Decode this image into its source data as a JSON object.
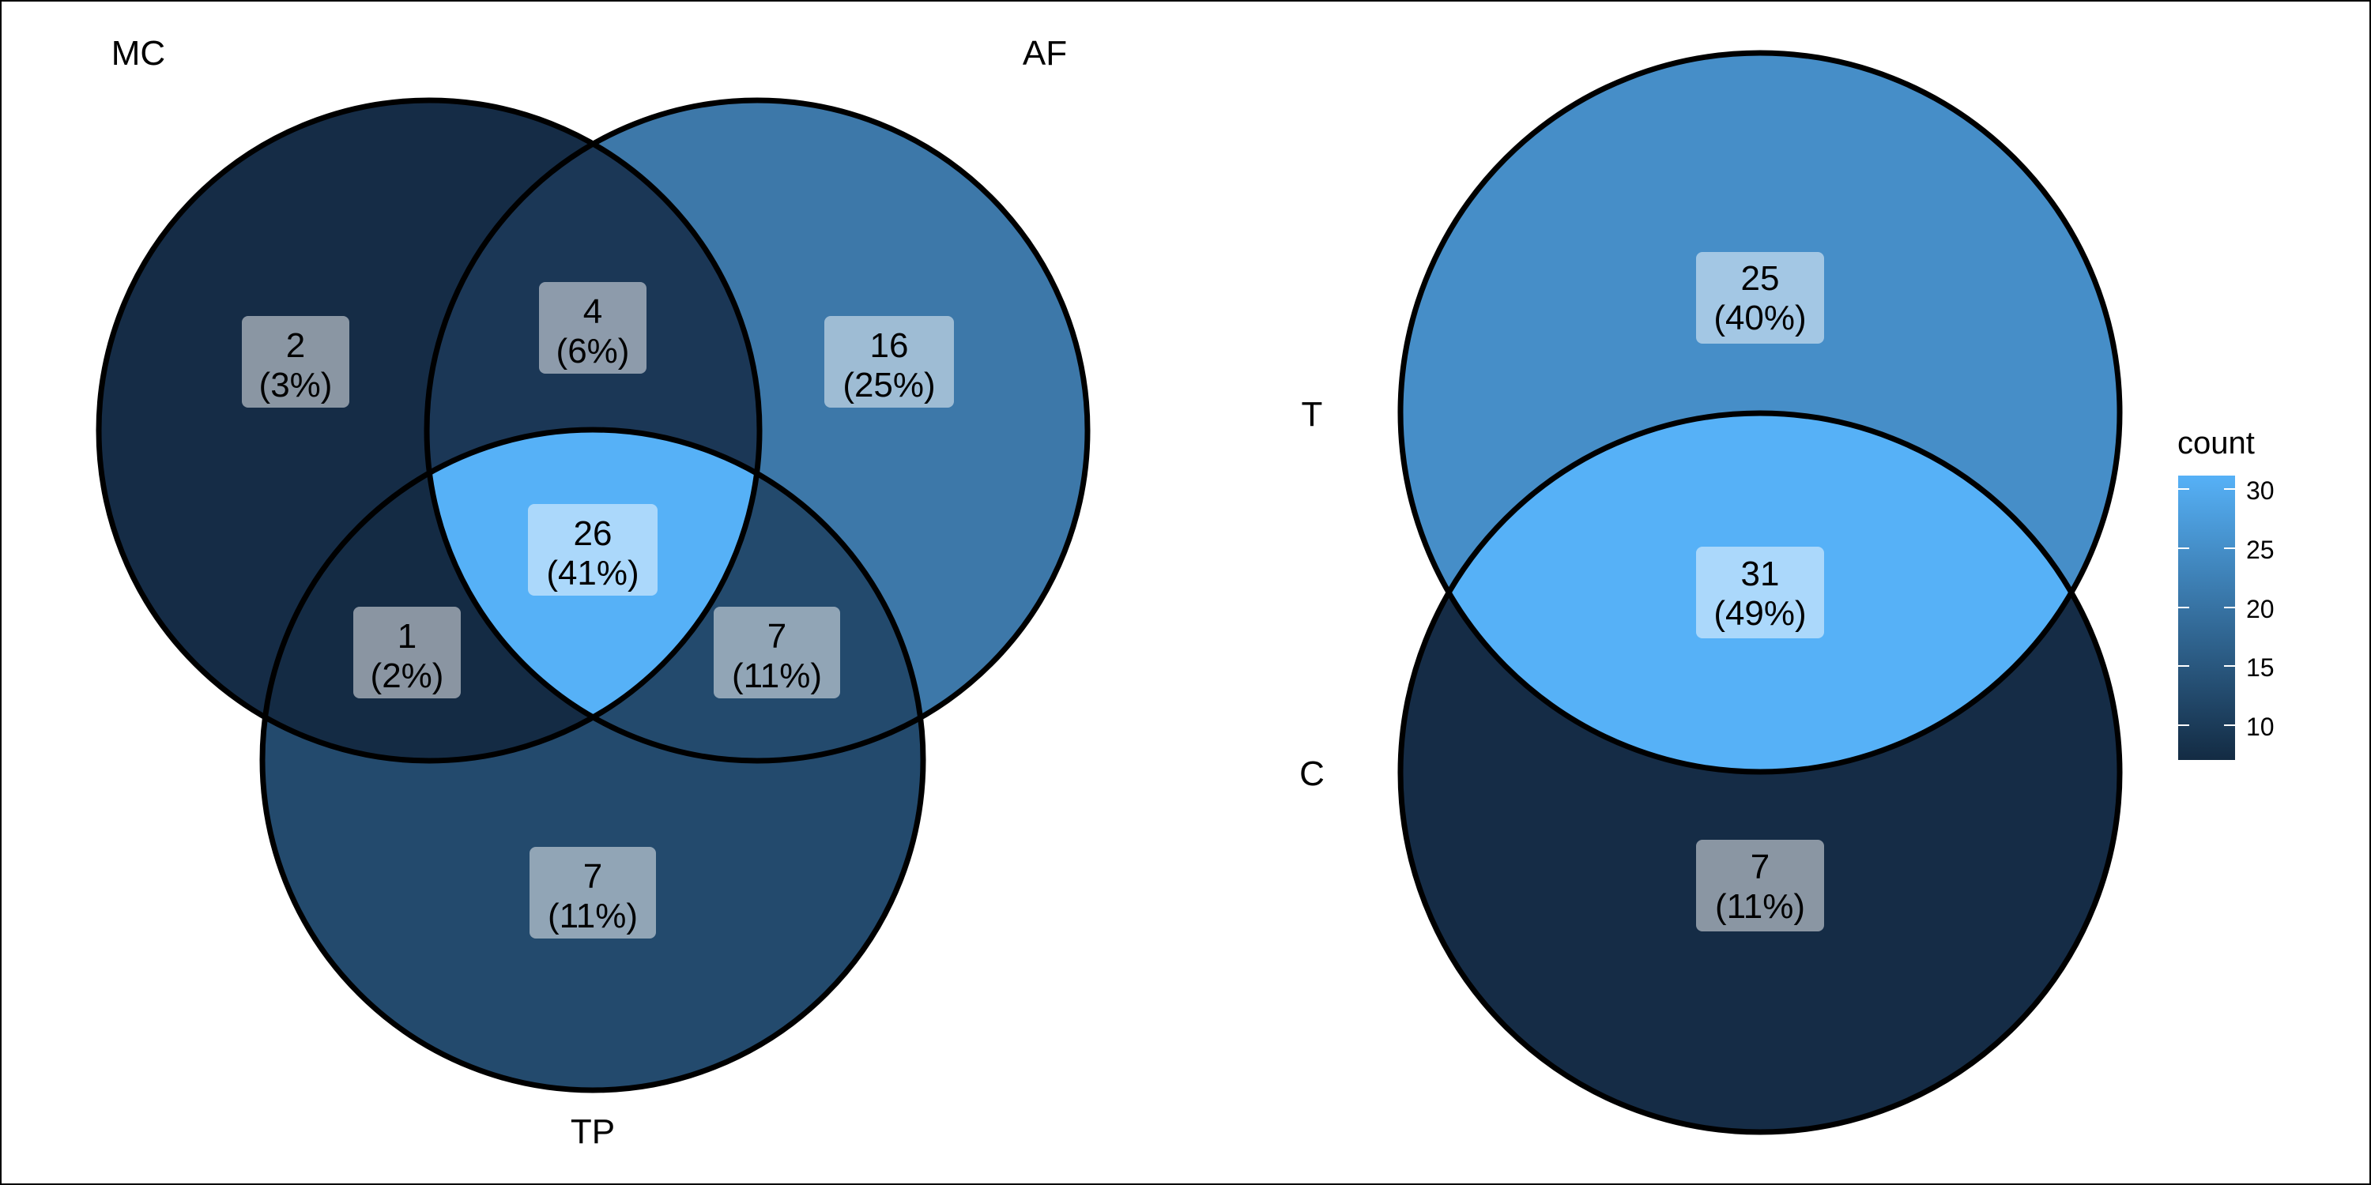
{
  "venn3": {
    "sets": [
      {
        "name": "MC"
      },
      {
        "name": "AF"
      },
      {
        "name": "TP"
      }
    ],
    "regions": [
      {
        "id": "MC-only",
        "count": "2",
        "pct": "(3%)"
      },
      {
        "id": "MC-AF",
        "count": "4",
        "pct": "(6%)"
      },
      {
        "id": "AF-only",
        "count": "16",
        "pct": "(25%)"
      },
      {
        "id": "MC-AF-TP",
        "count": "26",
        "pct": "(41%)"
      },
      {
        "id": "MC-TP",
        "count": "1",
        "pct": "(2%)"
      },
      {
        "id": "AF-TP",
        "count": "7",
        "pct": "(11%)"
      },
      {
        "id": "TP-only",
        "count": "7",
        "pct": "(11%)"
      }
    ]
  },
  "venn2": {
    "sets": [
      {
        "name": "T"
      },
      {
        "name": "C"
      }
    ],
    "regions": [
      {
        "id": "T-only",
        "count": "25",
        "pct": "(40%)"
      },
      {
        "id": "T-C",
        "count": "31",
        "pct": "(49%)"
      },
      {
        "id": "C-only",
        "count": "7",
        "pct": "(11%)"
      }
    ]
  },
  "legend": {
    "title": "count",
    "ticks": [
      "30",
      "25",
      "20",
      "15",
      "10"
    ],
    "low_color": "#132B43",
    "high_color": "#56B1F7"
  }
}
